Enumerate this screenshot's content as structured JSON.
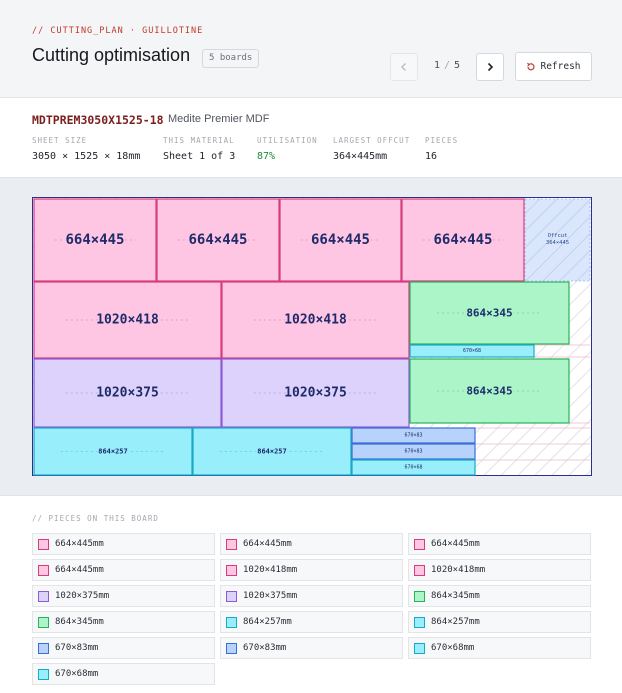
{
  "header": {
    "breadcrumb": "// CUTTING_PLAN · GUILLOTINE",
    "title": "Cutting optimisation",
    "boards_badge": "5 boards",
    "pager": {
      "current": "1",
      "separator": "/",
      "total": "5"
    },
    "refresh_label": "Refresh"
  },
  "material": {
    "code": "MDTPREM3050X1525-18",
    "name": "Medite Premier MDF",
    "stats": {
      "sheet_size": {
        "label": "SHEET SIZE",
        "value": "3050 × 1525 × 18mm"
      },
      "this_material": {
        "label": "THIS MATERIAL",
        "value": "Sheet 1 of 3"
      },
      "utilisation": {
        "label": "UTILISATION",
        "value": "87%"
      },
      "largest_offcut": {
        "label": "LARGEST OFFCUT",
        "value": "364×445mm"
      },
      "pieces": {
        "label": "PIECES",
        "value": "16"
      }
    }
  },
  "board": {
    "offcut_title": "Offcut",
    "offcut_size": "364×445",
    "pieces": [
      {
        "label": "664×445",
        "group": "pink"
      },
      {
        "label": "664×445",
        "group": "pink"
      },
      {
        "label": "664×445",
        "group": "pink"
      },
      {
        "label": "664×445",
        "group": "pink"
      },
      {
        "label": "1020×418",
        "group": "pink"
      },
      {
        "label": "1020×418",
        "group": "pink"
      },
      {
        "label": "864×345",
        "group": "green"
      },
      {
        "label": "670×68",
        "group": "cyan"
      },
      {
        "label": "1020×375",
        "group": "purple"
      },
      {
        "label": "1020×375",
        "group": "purple"
      },
      {
        "label": "864×345",
        "group": "green"
      },
      {
        "label": "864×257",
        "group": "cyan"
      },
      {
        "label": "864×257",
        "group": "cyan"
      },
      {
        "label": "670×83",
        "group": "blue"
      },
      {
        "label": "670×83",
        "group": "blue"
      },
      {
        "label": "670×68",
        "group": "cyan"
      }
    ]
  },
  "pieces_list": {
    "title": "// PIECES ON THIS BOARD",
    "items": [
      {
        "label": "664×445mm",
        "group": "pink"
      },
      {
        "label": "664×445mm",
        "group": "pink"
      },
      {
        "label": "664×445mm",
        "group": "pink"
      },
      {
        "label": "664×445mm",
        "group": "pink"
      },
      {
        "label": "1020×418mm",
        "group": "pink"
      },
      {
        "label": "1020×418mm",
        "group": "pink"
      },
      {
        "label": "1020×375mm",
        "group": "purple"
      },
      {
        "label": "1020×375mm",
        "group": "purple"
      },
      {
        "label": "864×345mm",
        "group": "green"
      },
      {
        "label": "864×345mm",
        "group": "green"
      },
      {
        "label": "864×257mm",
        "group": "cyan"
      },
      {
        "label": "864×257mm",
        "group": "cyan"
      },
      {
        "label": "670×83mm",
        "group": "blue"
      },
      {
        "label": "670×83mm",
        "group": "blue"
      },
      {
        "label": "670×68mm",
        "group": "cyan"
      },
      {
        "label": "670×68mm",
        "group": "cyan"
      }
    ]
  },
  "colors": {
    "pink": {
      "fill": "#ffc6e3",
      "stroke": "#d63c7e"
    },
    "purple": {
      "fill": "#dcd2fb",
      "stroke": "#8e5ad6"
    },
    "green": {
      "fill": "#abf5c9",
      "stroke": "#2bb05a"
    },
    "cyan": {
      "fill": "#98eefb",
      "stroke": "#1aa9c4"
    },
    "blue": {
      "fill": "#b7d3fc",
      "stroke": "#3a6fd6"
    },
    "board_border": "#2b2f8f",
    "offcut_fill": "#d6e4fb",
    "label_text": "#1e2b6b",
    "accent_red": "#c0392b"
  },
  "icons": {
    "prev": "chevron-left-icon",
    "next": "chevron-right-icon",
    "refresh": "refresh-icon"
  }
}
